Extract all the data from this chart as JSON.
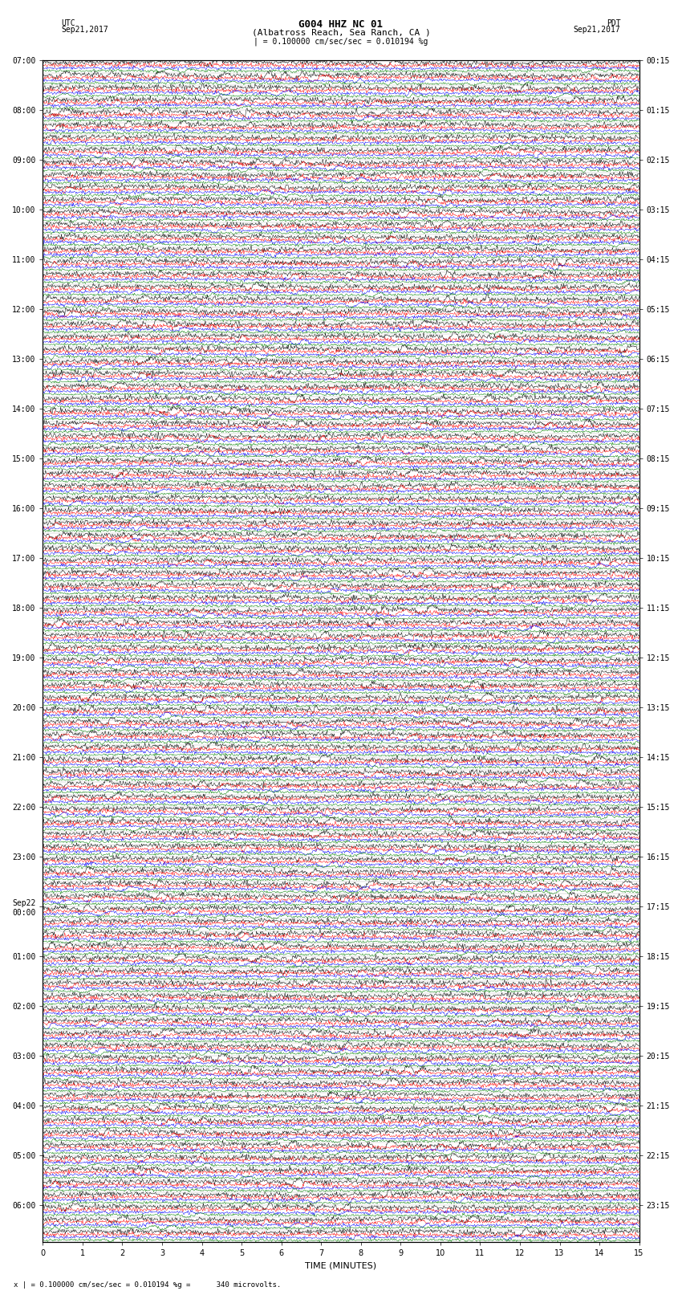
{
  "title_line1": "G004 HHZ NC 01",
  "title_line2": "(Albatross Reach, Sea Ranch, CA )",
  "scale_label": "| = 0.100000 cm/sec/sec = 0.010194 %g",
  "footer_label": "x | = 0.100000 cm/sec/sec = 0.010194 %g =      340 microvolts.",
  "left_date": "UTC\nSep21,2017",
  "right_date": "PDT\nSep21,2017",
  "xlabel": "TIME (MINUTES)",
  "xlim": [
    0,
    15
  ],
  "xticks": [
    0,
    1,
    2,
    3,
    4,
    5,
    6,
    7,
    8,
    9,
    10,
    11,
    12,
    13,
    14,
    15
  ],
  "utc_times": [
    "07:00",
    "",
    "",
    "",
    "08:00",
    "",
    "",
    "",
    "09:00",
    "",
    "",
    "",
    "10:00",
    "",
    "",
    "",
    "11:00",
    "",
    "",
    "",
    "12:00",
    "",
    "",
    "",
    "13:00",
    "",
    "",
    "",
    "14:00",
    "",
    "",
    "",
    "15:00",
    "",
    "",
    "",
    "16:00",
    "",
    "",
    "",
    "17:00",
    "",
    "",
    "",
    "18:00",
    "",
    "",
    "",
    "19:00",
    "",
    "",
    "",
    "20:00",
    "",
    "",
    "",
    "21:00",
    "",
    "",
    "",
    "22:00",
    "",
    "",
    "",
    "23:00",
    "",
    "",
    "",
    "Sep22\n00:00",
    "",
    "",
    "",
    "01:00",
    "",
    "",
    "",
    "02:00",
    "",
    "",
    "",
    "03:00",
    "",
    "",
    "",
    "04:00",
    "",
    "",
    "",
    "05:00",
    "",
    "",
    "",
    "06:00",
    "",
    ""
  ],
  "pdt_times": [
    "00:15",
    "",
    "",
    "",
    "01:15",
    "",
    "",
    "",
    "02:15",
    "",
    "",
    "",
    "03:15",
    "",
    "",
    "",
    "04:15",
    "",
    "",
    "",
    "05:15",
    "",
    "",
    "",
    "06:15",
    "",
    "",
    "",
    "07:15",
    "",
    "",
    "",
    "08:15",
    "",
    "",
    "",
    "09:15",
    "",
    "",
    "",
    "10:15",
    "",
    "",
    "",
    "11:15",
    "",
    "",
    "",
    "12:15",
    "",
    "",
    "",
    "13:15",
    "",
    "",
    "",
    "14:15",
    "",
    "",
    "",
    "15:15",
    "",
    "",
    "",
    "16:15",
    "",
    "",
    "",
    "17:15",
    "",
    "",
    "",
    "18:15",
    "",
    "",
    "",
    "19:15",
    "",
    "",
    "",
    "20:15",
    "",
    "",
    "",
    "21:15",
    "",
    "",
    "",
    "22:15",
    "",
    "",
    "",
    "23:15",
    "",
    ""
  ],
  "trace_colors": [
    "black",
    "red",
    "blue",
    "green"
  ],
  "bg_color": "white",
  "plot_bg_color": "white",
  "trace_linewidth": 0.35,
  "n_rows": 95,
  "n_traces_per_group": 4,
  "amplitude_black": 0.35,
  "amplitude_red": 0.28,
  "amplitude_blue": 0.22,
  "amplitude_green": 0.18,
  "noise_seed": 42
}
